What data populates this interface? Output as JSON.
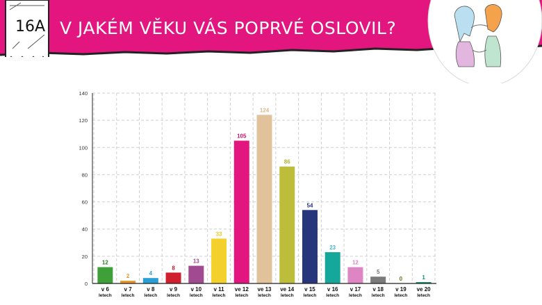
{
  "slide": {
    "number": "16A",
    "title": "V JAKÉM VĚKU VÁS POPRVÉ OSLOVIL?"
  },
  "colors": {
    "banner": "#e3157f",
    "grid": "#cfcfcf",
    "axis": "#222222"
  },
  "chart_data": {
    "type": "bar",
    "title": "",
    "xlabel": "",
    "ylabel": "",
    "ylim": [
      0,
      140
    ],
    "yticks": [
      0,
      20,
      40,
      60,
      80,
      100,
      120,
      140
    ],
    "grid": true,
    "legend": "none",
    "categories": [
      [
        "v 6",
        "letech"
      ],
      [
        "v 7",
        "letech"
      ],
      [
        "v 8",
        "letech"
      ],
      [
        "v 9",
        "letech"
      ],
      [
        "v 10",
        "letech"
      ],
      [
        "v 11",
        "letech"
      ],
      [
        "ve 12",
        "letech"
      ],
      [
        "ve 13",
        "letech"
      ],
      [
        "ve 14",
        "letech"
      ],
      [
        "v 15",
        "letech"
      ],
      [
        "v 16",
        "letech"
      ],
      [
        "v 17",
        "letech"
      ],
      [
        "v 18",
        "letech"
      ],
      [
        "v 19",
        "letech"
      ],
      [
        "ve 20",
        "letech"
      ]
    ],
    "values": [
      12,
      2,
      4,
      8,
      13,
      33,
      105,
      124,
      86,
      54,
      23,
      12,
      5,
      0,
      1
    ],
    "bar_colors": [
      "#3fa03a",
      "#e9962a",
      "#2a9fd6",
      "#d0202e",
      "#a14a92",
      "#f4d02c",
      "#e3157f",
      "#e2c29a",
      "#bcbd3a",
      "#27357a",
      "#15a89a",
      "#dd86c3",
      "#7b7b7b",
      "#3a7a2a",
      "#138f6c"
    ],
    "label_colors": [
      "#2a7a2a",
      "#e9962a",
      "#2a9fd6",
      "#c01a26",
      "#9b4a90",
      "#f2c81e",
      "#c8106e",
      "#d8b88e",
      "#b1b22f",
      "#27357a",
      "#3fb5d6",
      "#dd86c3",
      "#6e6e6e",
      "#5a7a1a",
      "#138f6c"
    ]
  }
}
